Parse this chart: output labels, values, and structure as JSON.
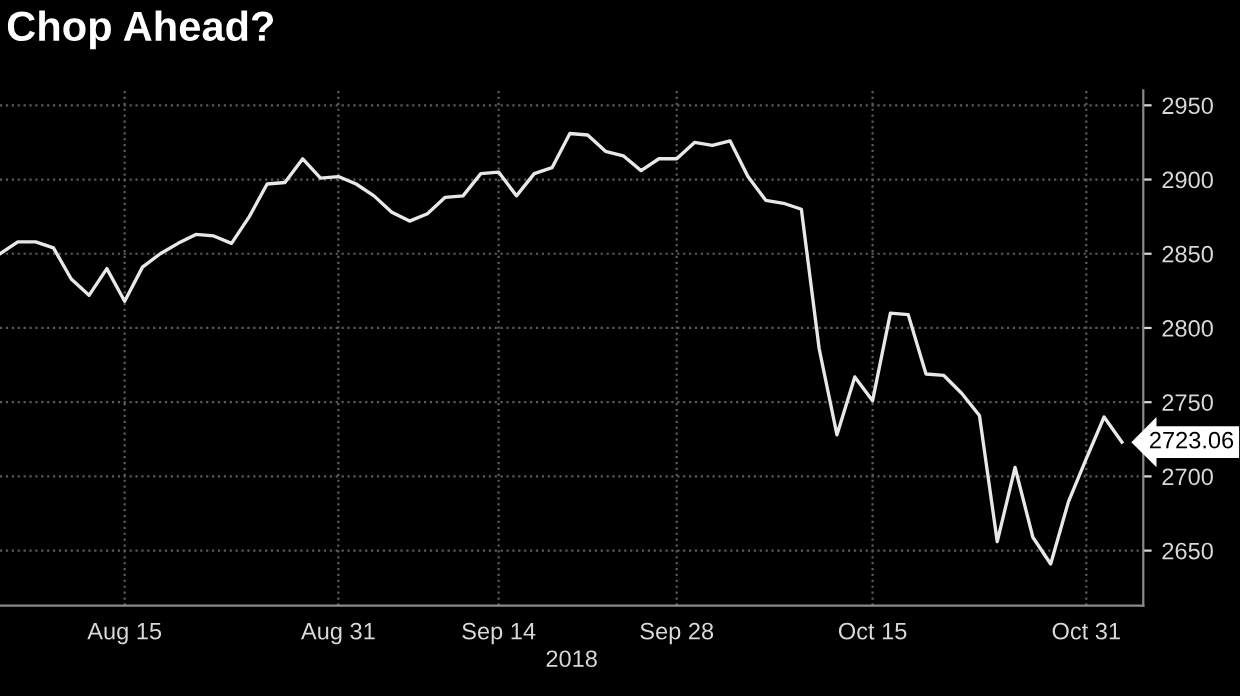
{
  "chart_data": {
    "type": "line",
    "title": "Chop Ahead?",
    "xlabel": "2018",
    "categories": [
      null,
      null,
      null,
      null,
      null,
      null,
      null,
      "Aug 15",
      null,
      null,
      null,
      null,
      null,
      null,
      null,
      null,
      null,
      null,
      null,
      "Aug 31",
      null,
      null,
      null,
      null,
      null,
      null,
      null,
      null,
      "Sep 14",
      null,
      null,
      null,
      null,
      null,
      null,
      null,
      null,
      null,
      "Sep 28",
      null,
      null,
      null,
      null,
      null,
      null,
      null,
      null,
      null,
      null,
      "Oct 15",
      null,
      null,
      null,
      null,
      null,
      null,
      null,
      null,
      null,
      null,
      null,
      "Oct 31",
      null,
      null
    ],
    "series": [
      {
        "color": "#e8e8e8",
        "values": [
          2850,
          2858,
          2858,
          2854,
          2833,
          2822,
          2840,
          2818,
          2841,
          2850,
          2857,
          2863,
          2862,
          2857,
          2875,
          2897,
          2898,
          2914,
          2901,
          2902,
          2897,
          2889,
          2878,
          2872,
          2877,
          2888,
          2889,
          2904,
          2905,
          2889,
          2904,
          2908,
          2931,
          2930,
          2919,
          2916,
          2906,
          2914,
          2914,
          2925,
          2923,
          2926,
          2902,
          2886,
          2884,
          2880,
          2786,
          2728,
          2767,
          2751,
          2810,
          2809,
          2769,
          2768,
          2756,
          2741,
          2656,
          2706,
          2659,
          2641,
          2683,
          2712,
          2740,
          2723.06
        ],
        "value_labels": [
          null,
          null,
          null,
          null,
          null,
          null,
          null,
          null,
          null,
          null,
          null,
          null,
          null,
          null,
          null,
          null,
          null,
          null,
          null,
          null,
          null,
          null,
          null,
          null,
          null,
          null,
          null,
          null,
          null,
          null,
          null,
          null,
          null,
          null,
          null,
          null,
          null,
          null,
          null,
          null,
          null,
          null,
          null,
          null,
          null,
          null,
          null,
          null,
          null,
          null,
          null,
          null,
          null,
          null,
          null,
          null,
          null,
          null,
          null,
          null,
          null,
          null,
          null,
          "2723.06"
        ]
      }
    ],
    "ylim": [
      2613,
      2960
    ],
    "yticks": [
      2650,
      2700,
      2750,
      2800,
      2850,
      2900,
      2950
    ],
    "grid": true,
    "marker": "none",
    "line_style": "solid"
  }
}
